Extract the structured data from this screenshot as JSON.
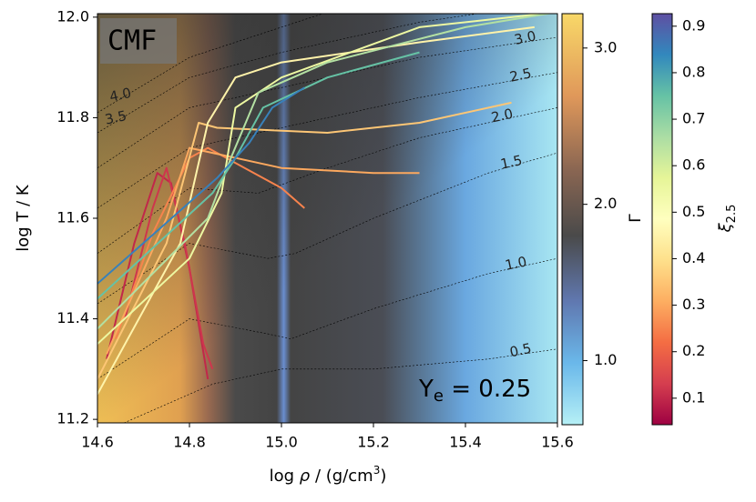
{
  "chart_data": {
    "type": "line",
    "xlabel": [
      "log ",
      "ρ",
      " / (g/cm",
      "3",
      ")"
    ],
    "ylabel": "log T / K",
    "xlim": [
      14.6,
      15.6
    ],
    "ylim": [
      11.193,
      12.007
    ],
    "xticks": [
      14.6,
      14.8,
      {
        "value": 15,
        "label": "15.0"
      },
      15.2,
      15.4,
      15.6
    ],
    "yticks": [
      11.2,
      11.4,
      11.6,
      11.8,
      {
        "value": 12,
        "label": "12.0"
      }
    ],
    "box_label": "CMF",
    "annotation": [
      "Y",
      "e",
      " = 0.25"
    ],
    "gamma_colorbar": {
      "label": "Γ",
      "lim": [
        0.59,
        3.22
      ],
      "ticks": [
        {
          "value": 1,
          "label": "1.0"
        },
        {
          "value": 2,
          "label": "2.0"
        },
        {
          "value": 3,
          "label": "3.0"
        }
      ]
    },
    "xi_colorbar": {
      "label": [
        "ξ",
        "2.5"
      ],
      "lim": [
        0.043,
        0.927
      ],
      "ticks": [
        0.1,
        0.2,
        0.3,
        0.4,
        0.5,
        0.6,
        0.7,
        0.8,
        0.9
      ]
    },
    "contours": [
      {
        "level": 0.5,
        "x": [
          14.65,
          14.85,
          15.0,
          15.2,
          15.45,
          15.6
        ],
        "y": [
          11.19,
          11.27,
          11.3,
          11.3,
          11.32,
          11.34
        ]
      },
      {
        "level": {
          "value": 1,
          "label": "1.0"
        },
        "x": [
          14.6,
          14.8,
          14.97,
          15.02,
          15.2,
          15.45,
          15.6
        ],
        "y": [
          11.28,
          11.4,
          11.37,
          11.36,
          11.42,
          11.49,
          11.52
        ]
      },
      {
        "level": 1.5,
        "x": [
          14.6,
          14.8,
          14.97,
          15.03,
          15.2,
          15.45,
          15.6
        ],
        "y": [
          11.43,
          11.55,
          11.52,
          11.53,
          11.6,
          11.69,
          11.73
        ]
      },
      {
        "level": {
          "value": 2,
          "label": "2.0"
        },
        "x": [
          14.6,
          14.8,
          14.95,
          15.1,
          15.3,
          15.6
        ],
        "y": [
          11.53,
          11.66,
          11.65,
          11.7,
          11.76,
          11.82
        ]
      },
      {
        "level": 2.5,
        "x": [
          14.6,
          14.8,
          15.0,
          15.3,
          15.6
        ],
        "y": [
          11.62,
          11.74,
          11.78,
          11.84,
          11.89
        ]
      },
      {
        "level": {
          "value": 3,
          "label": "3.0"
        },
        "x": [
          14.6,
          14.8,
          15.0,
          15.3,
          15.6
        ],
        "y": [
          11.7,
          11.82,
          11.86,
          11.92,
          11.96
        ]
      },
      {
        "level": 3.5,
        "x": [
          14.6,
          14.8,
          15.0,
          15.3,
          15.45
        ],
        "y": [
          11.77,
          11.88,
          11.93,
          11.99,
          12.01
        ]
      },
      {
        "level": {
          "value": 4,
          "label": "4.0"
        },
        "x": [
          14.6,
          14.8,
          15.0,
          15.1
        ],
        "y": [
          11.81,
          11.92,
          11.98,
          12.01
        ]
      }
    ],
    "series": [
      {
        "xi": 0.1,
        "x": [
          14.62,
          14.68,
          14.73,
          14.76,
          14.8,
          14.84
        ],
        "y": [
          11.32,
          11.55,
          11.69,
          11.67,
          11.5,
          11.28
        ]
      },
      {
        "xi": 0.12,
        "x": [
          14.66,
          14.72,
          14.75,
          14.79,
          14.83,
          14.85
        ],
        "y": [
          11.4,
          11.62,
          11.7,
          11.55,
          11.35,
          11.3
        ]
      },
      {
        "xi": 0.25,
        "x": [
          14.64,
          14.72,
          14.8,
          14.84,
          14.92,
          15.0,
          15.05
        ],
        "y": [
          11.36,
          11.57,
          11.72,
          11.74,
          11.7,
          11.66,
          11.62
        ]
      },
      {
        "xi": 0.3,
        "x": [
          14.62,
          14.75,
          14.8,
          14.85,
          15.0,
          15.2,
          15.3
        ],
        "y": [
          11.33,
          11.6,
          11.74,
          11.73,
          11.7,
          11.69,
          11.69
        ]
      },
      {
        "xi": 0.35,
        "x": [
          14.6,
          14.75,
          14.82,
          14.86,
          15.1,
          15.3,
          15.5
        ],
        "y": [
          11.28,
          11.55,
          11.79,
          11.78,
          11.77,
          11.79,
          11.83
        ]
      },
      {
        "xi": 0.45,
        "x": [
          14.6,
          14.78,
          14.84,
          14.9,
          15.0,
          15.3,
          15.55
        ],
        "y": [
          11.25,
          11.55,
          11.79,
          11.88,
          11.91,
          11.95,
          11.98
        ]
      },
      {
        "xi": 0.55,
        "x": [
          14.6,
          14.8,
          14.87,
          14.9,
          15.0,
          15.3,
          15.6
        ],
        "y": [
          11.35,
          11.52,
          11.65,
          11.82,
          11.88,
          11.98,
          12.01
        ]
      },
      {
        "xi": 0.65,
        "x": [
          14.6,
          14.84,
          14.89,
          14.95,
          15.1,
          15.4,
          15.6
        ],
        "y": [
          11.38,
          11.6,
          11.72,
          11.85,
          11.91,
          11.98,
          12.01
        ]
      },
      {
        "xi": 0.75,
        "x": [
          14.6,
          14.85,
          14.9,
          14.96,
          15.1,
          15.3
        ],
        "y": [
          11.44,
          11.65,
          11.72,
          11.82,
          11.88,
          11.93
        ]
      },
      {
        "xi": 0.85,
        "x": [
          14.6,
          14.86,
          14.93,
          14.98,
          15.05
        ],
        "y": [
          11.47,
          11.68,
          11.75,
          11.82,
          11.86
        ]
      }
    ]
  }
}
